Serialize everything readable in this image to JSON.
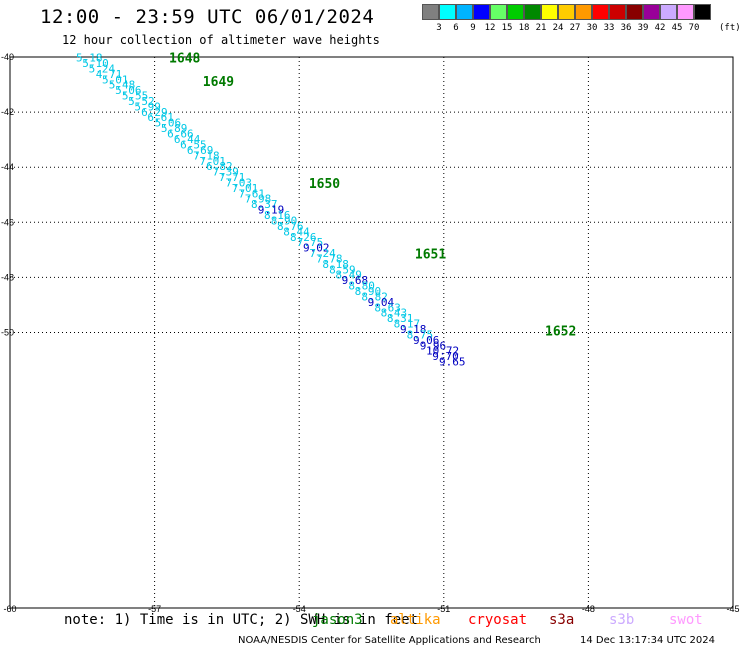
{
  "header": {
    "title": "12:00 - 23:59 UTC 06/01/2024",
    "subtitle": "12 hour collection of altimeter wave heights"
  },
  "color_scale": {
    "unit": "(ft)",
    "bins": [
      {
        "label": "3",
        "color": "#808080"
      },
      {
        "label": "6",
        "color": "#00ffff"
      },
      {
        "label": "9",
        "color": "#00b4ff"
      },
      {
        "label": "12",
        "color": "#0000ff"
      },
      {
        "label": "15",
        "color": "#66ff66"
      },
      {
        "label": "18",
        "color": "#00cc00"
      },
      {
        "label": "21",
        "color": "#008800"
      },
      {
        "label": "24",
        "color": "#ffff00"
      },
      {
        "label": "27",
        "color": "#ffcc00"
      },
      {
        "label": "30",
        "color": "#ff9900"
      },
      {
        "label": "33",
        "color": "#ff0000"
      },
      {
        "label": "36",
        "color": "#cc0000"
      },
      {
        "label": "39",
        "color": "#880000"
      },
      {
        "label": "42",
        "color": "#990099"
      },
      {
        "label": "45",
        "color": "#ccaaff"
      },
      {
        "label": "70",
        "color": "#ff99ff"
      },
      {
        "label": "",
        "color": "#000000"
      }
    ]
  },
  "chart_data": {
    "type": "scatter",
    "xlim": [
      -60,
      -45
    ],
    "ylim": [
      -60,
      -40
    ],
    "x_ticks": [
      "-60",
      "-57",
      "-54",
      "-51",
      "-48",
      "-45"
    ],
    "y_ticks": [
      "-40",
      "-42",
      "-44",
      "-46",
      "-48",
      "-50"
    ],
    "x_tick_values": [
      -60,
      -57,
      -54,
      -51,
      -48,
      -45
    ],
    "y_tick_values": [
      -40,
      -42,
      -44,
      -46,
      -48,
      -50
    ],
    "grid": true,
    "colors": {
      "cyan": "#00c8e6",
      "blue": "#0000c0",
      "time": "#007a00"
    },
    "time_labels": [
      {
        "text": "1648",
        "lon": -56.7,
        "lat": -40.02
      },
      {
        "text": "1649",
        "lon": -56.0,
        "lat": -40.87
      },
      {
        "text": "1650",
        "lon": -53.8,
        "lat": -44.58
      },
      {
        "text": "1651",
        "lon": -51.6,
        "lat": -47.13
      },
      {
        "text": "1652",
        "lon": -48.9,
        "lat": -49.93
      }
    ],
    "points": [
      {
        "lon": -58.63,
        "lat": -40.02,
        "swh": "5.18",
        "c": "cyan"
      },
      {
        "lon": -58.5,
        "lat": -40.22,
        "swh": "5.10",
        "c": "cyan"
      },
      {
        "lon": -58.37,
        "lat": -40.42,
        "swh": "5.24",
        "c": "cyan"
      },
      {
        "lon": -58.22,
        "lat": -40.62,
        "swh": "4.71",
        "c": "cyan"
      },
      {
        "lon": -58.09,
        "lat": -40.82,
        "swh": "5.01",
        "c": "cyan"
      },
      {
        "lon": -57.95,
        "lat": -41.0,
        "swh": "5.48",
        "c": "cyan"
      },
      {
        "lon": -57.82,
        "lat": -41.2,
        "swh": "5.06",
        "c": "cyan"
      },
      {
        "lon": -57.68,
        "lat": -41.4,
        "swh": "5.55",
        "c": "cyan"
      },
      {
        "lon": -57.55,
        "lat": -41.6,
        "swh": "5.52",
        "c": "cyan"
      },
      {
        "lon": -57.42,
        "lat": -41.8,
        "swh": "5.99",
        "c": "cyan"
      },
      {
        "lon": -57.28,
        "lat": -42.0,
        "swh": "6.29",
        "c": "cyan"
      },
      {
        "lon": -57.15,
        "lat": -42.18,
        "swh": "6.61",
        "c": "cyan"
      },
      {
        "lon": -57.0,
        "lat": -42.38,
        "swh": "5.06",
        "c": "cyan"
      },
      {
        "lon": -56.87,
        "lat": -42.58,
        "swh": "5.89",
        "c": "cyan"
      },
      {
        "lon": -56.74,
        "lat": -42.78,
        "swh": "6.66",
        "c": "cyan"
      },
      {
        "lon": -56.6,
        "lat": -42.98,
        "swh": "6.44",
        "c": "cyan"
      },
      {
        "lon": -56.47,
        "lat": -43.18,
        "swh": "6.55",
        "c": "cyan"
      },
      {
        "lon": -56.33,
        "lat": -43.38,
        "swh": "6.69",
        "c": "cyan"
      },
      {
        "lon": -56.2,
        "lat": -43.58,
        "swh": "7.18",
        "c": "cyan"
      },
      {
        "lon": -56.07,
        "lat": -43.78,
        "swh": "7.01",
        "c": "cyan"
      },
      {
        "lon": -55.93,
        "lat": -43.96,
        "swh": "6.82",
        "c": "cyan"
      },
      {
        "lon": -55.8,
        "lat": -44.16,
        "swh": "7.39",
        "c": "cyan"
      },
      {
        "lon": -55.67,
        "lat": -44.36,
        "swh": "7.71",
        "c": "cyan"
      },
      {
        "lon": -55.53,
        "lat": -44.56,
        "swh": "7.03",
        "c": "cyan"
      },
      {
        "lon": -55.4,
        "lat": -44.76,
        "swh": "7.01",
        "c": "cyan"
      },
      {
        "lon": -55.26,
        "lat": -44.96,
        "swh": "7.61",
        "c": "cyan"
      },
      {
        "lon": -55.13,
        "lat": -45.14,
        "swh": "7.98",
        "c": "cyan"
      },
      {
        "lon": -55.0,
        "lat": -45.34,
        "swh": "8.37",
        "c": "cyan"
      },
      {
        "lon": -54.86,
        "lat": -45.54,
        "swh": "9.19",
        "c": "blue"
      },
      {
        "lon": -54.73,
        "lat": -45.74,
        "swh": "8.16",
        "c": "cyan"
      },
      {
        "lon": -54.59,
        "lat": -45.94,
        "swh": "8.90",
        "c": "cyan"
      },
      {
        "lon": -54.46,
        "lat": -46.14,
        "swh": "8.76",
        "c": "cyan"
      },
      {
        "lon": -54.33,
        "lat": -46.34,
        "swh": "8.44",
        "c": "cyan"
      },
      {
        "lon": -54.19,
        "lat": -46.54,
        "swh": "8.26",
        "c": "cyan"
      },
      {
        "lon": -54.05,
        "lat": -46.72,
        "swh": "7.75",
        "c": "cyan"
      },
      {
        "lon": -53.92,
        "lat": -46.92,
        "swh": "9.02",
        "c": "blue"
      },
      {
        "lon": -53.79,
        "lat": -47.12,
        "swh": "7.24",
        "c": "cyan"
      },
      {
        "lon": -53.65,
        "lat": -47.32,
        "swh": "7.78",
        "c": "cyan"
      },
      {
        "lon": -53.52,
        "lat": -47.52,
        "swh": "8.18",
        "c": "cyan"
      },
      {
        "lon": -53.38,
        "lat": -47.72,
        "swh": "8.59",
        "c": "cyan"
      },
      {
        "lon": -53.25,
        "lat": -47.9,
        "swh": "8.49",
        "c": "cyan"
      },
      {
        "lon": -53.12,
        "lat": -48.1,
        "swh": "9.68",
        "c": "blue"
      },
      {
        "lon": -52.98,
        "lat": -48.3,
        "swh": "8.80",
        "c": "cyan"
      },
      {
        "lon": -52.85,
        "lat": -48.5,
        "swh": "8.90",
        "c": "cyan"
      },
      {
        "lon": -52.71,
        "lat": -48.7,
        "swh": "8.82",
        "c": "cyan"
      },
      {
        "lon": -52.58,
        "lat": -48.9,
        "swh": "9.04",
        "c": "blue"
      },
      {
        "lon": -52.44,
        "lat": -49.1,
        "swh": "8.63",
        "c": "cyan"
      },
      {
        "lon": -52.31,
        "lat": -49.28,
        "swh": "8.43",
        "c": "cyan"
      },
      {
        "lon": -52.18,
        "lat": -49.48,
        "swh": "8.31",
        "c": "cyan"
      },
      {
        "lon": -52.04,
        "lat": -49.68,
        "swh": "8.17",
        "c": "cyan"
      },
      {
        "lon": -51.91,
        "lat": -49.88,
        "swh": "9.18",
        "c": "blue"
      },
      {
        "lon": -51.77,
        "lat": -50.08,
        "swh": "8.75",
        "c": "cyan"
      },
      {
        "lon": -51.64,
        "lat": -50.28,
        "swh": "9.06",
        "c": "blue"
      },
      {
        "lon": -51.5,
        "lat": -50.48,
        "swh": "9.96",
        "c": "blue"
      },
      {
        "lon": -51.37,
        "lat": -50.66,
        "swh": "10.72",
        "c": "blue"
      },
      {
        "lon": -51.24,
        "lat": -50.86,
        "swh": "9.70",
        "c": "blue"
      },
      {
        "lon": -51.1,
        "lat": -51.06,
        "swh": "9.65",
        "c": "blue"
      }
    ]
  },
  "footer": {
    "note": "note: 1) Time is in UTC; 2) SWH is in feet",
    "legend": [
      {
        "text": "jason3",
        "color": "#007a00"
      },
      {
        "text": "altika",
        "color": "#ff9900"
      },
      {
        "text": "cryosat",
        "color": "#ff0000"
      },
      {
        "text": "s3a",
        "color": "#880000"
      },
      {
        "text": "s3b",
        "color": "#ccaaff"
      },
      {
        "text": "swot",
        "color": "#ff99ff"
      }
    ],
    "credit": "NOAA/NESDIS Center for Satellite Applications and Research",
    "timestamp": "14 Dec 13:17:34 UTC 2024"
  }
}
